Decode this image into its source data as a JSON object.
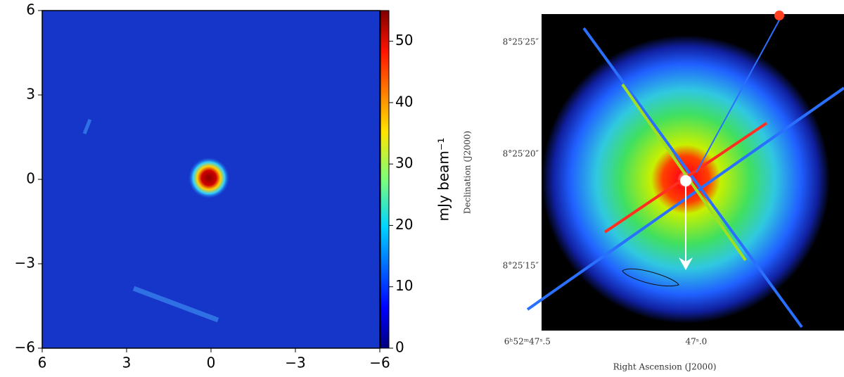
{
  "chart_data": [
    {
      "type": "image",
      "xlim": [
        6,
        -6
      ],
      "ylim": [
        -6,
        6
      ],
      "xticks": [
        6,
        3,
        0,
        {
          "value": -3,
          "label": "−3"
        },
        {
          "value": -6,
          "label": "−6"
        }
      ],
      "yticks": [
        {
          "value": -6,
          "label": "−6"
        },
        {
          "value": -3,
          "label": "−3"
        },
        0,
        3,
        6
      ],
      "colorbar_label": "mJy beam⁻¹",
      "clim": [
        0,
        55
      ],
      "cticks": [
        0,
        10,
        20,
        30,
        40,
        50
      ]
    },
    {
      "type": "image",
      "xlabel": "Right Ascension (J2000)",
      "ylabel": "Declination (J2000)",
      "xlim": [
        47.458,
        46.5625
      ],
      "ylim": [
        12.1,
        26.26
      ],
      "xticks": [
        {
          "value": 47.5,
          "label": "6ʰ52ᵐ47ˢ.5"
        },
        {
          "value": 47.0,
          "label": "47ˢ.0"
        }
      ],
      "yticks": [
        {
          "value": 25,
          "label": "8°25′25″"
        },
        {
          "value": 20,
          "label": "8°25′20″"
        },
        {
          "value": 15,
          "label": "8°25′15″"
        }
      ]
    }
  ]
}
